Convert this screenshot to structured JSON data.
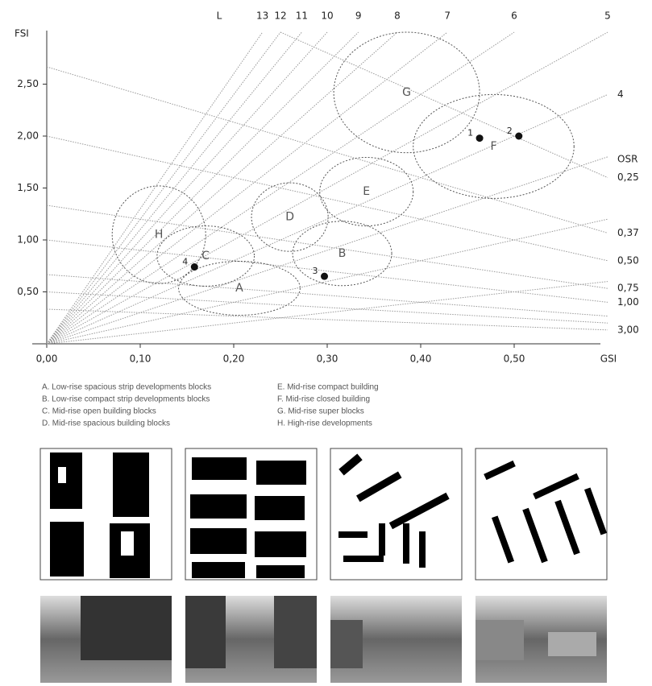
{
  "chart_data": {
    "type": "spacemate",
    "xlabel": "GSI",
    "ylabel": "FSI",
    "xlim": [
      0,
      0.6
    ],
    "ylim": [
      0,
      3
    ],
    "xticks": [
      {
        "value": 0,
        "label": "0,00"
      },
      {
        "value": 0.1,
        "label": "0,10"
      },
      {
        "value": 0.2,
        "label": "0,20"
      },
      {
        "value": 0.3,
        "label": "0,30"
      },
      {
        "value": 0.4,
        "label": "0,40"
      },
      {
        "value": 0.5,
        "label": "0,50"
      }
    ],
    "yticks": [
      {
        "value": 0.5,
        "label": "0,50"
      },
      {
        "value": 1,
        "label": "1,00"
      },
      {
        "value": 1.5,
        "label": "1,50"
      },
      {
        "value": 2,
        "label": "2,00"
      },
      {
        "value": 2.5,
        "label": "2,50"
      }
    ],
    "layers": {
      "label": "L",
      "values": [
        13,
        12,
        11,
        10,
        9,
        8,
        7,
        6,
        5,
        4,
        3,
        2,
        1
      ],
      "labels": [
        "13",
        "12",
        "11",
        "10",
        "9",
        "8",
        "7",
        "6",
        "5",
        "4",
        null,
        null,
        null
      ]
    },
    "osr": {
      "label": "OSR",
      "values": [
        0.25,
        0.375,
        0.5,
        0.75,
        1,
        3,
        1.5,
        2
      ],
      "labels": [
        "0,25",
        "0,37",
        "0,50",
        "0,75",
        "1,00",
        "3,00",
        null,
        null
      ]
    },
    "regions": {
      "labels": [
        "A",
        "B",
        "C",
        "D",
        "E",
        "F",
        "G",
        "H"
      ],
      "x": [
        0.206,
        0.316,
        0.17,
        0.26,
        0.342,
        0.478,
        0.385,
        0.12
      ],
      "y": [
        0.535,
        0.87,
        0.845,
        1.22,
        1.465,
        1.9,
        2.42,
        1.05
      ],
      "rx": [
        0.065,
        0.053,
        0.052,
        0.041,
        0.05,
        0.086,
        0.078,
        0.05
      ],
      "ry": [
        0.26,
        0.31,
        0.29,
        0.33,
        0.33,
        0.5,
        0.58,
        0.47
      ]
    },
    "points": {
      "labels": [
        "1",
        "2",
        "3",
        "4"
      ],
      "x": [
        0.463,
        0.505,
        0.297,
        0.158
      ],
      "y": [
        1.98,
        2.0,
        0.65,
        0.74
      ]
    },
    "legend": [
      "A. Low-rise spacious strip developments blocks",
      "B. Low-rise compact strip developments blocks",
      "C. Mid-rise open building blocks",
      "D. Mid-rise spacious building blocks",
      "E. Mid-rise compact building",
      "F. Mid-rise closed building",
      "G. Mid-rise super blocks",
      "H. High-rise developments"
    ]
  }
}
